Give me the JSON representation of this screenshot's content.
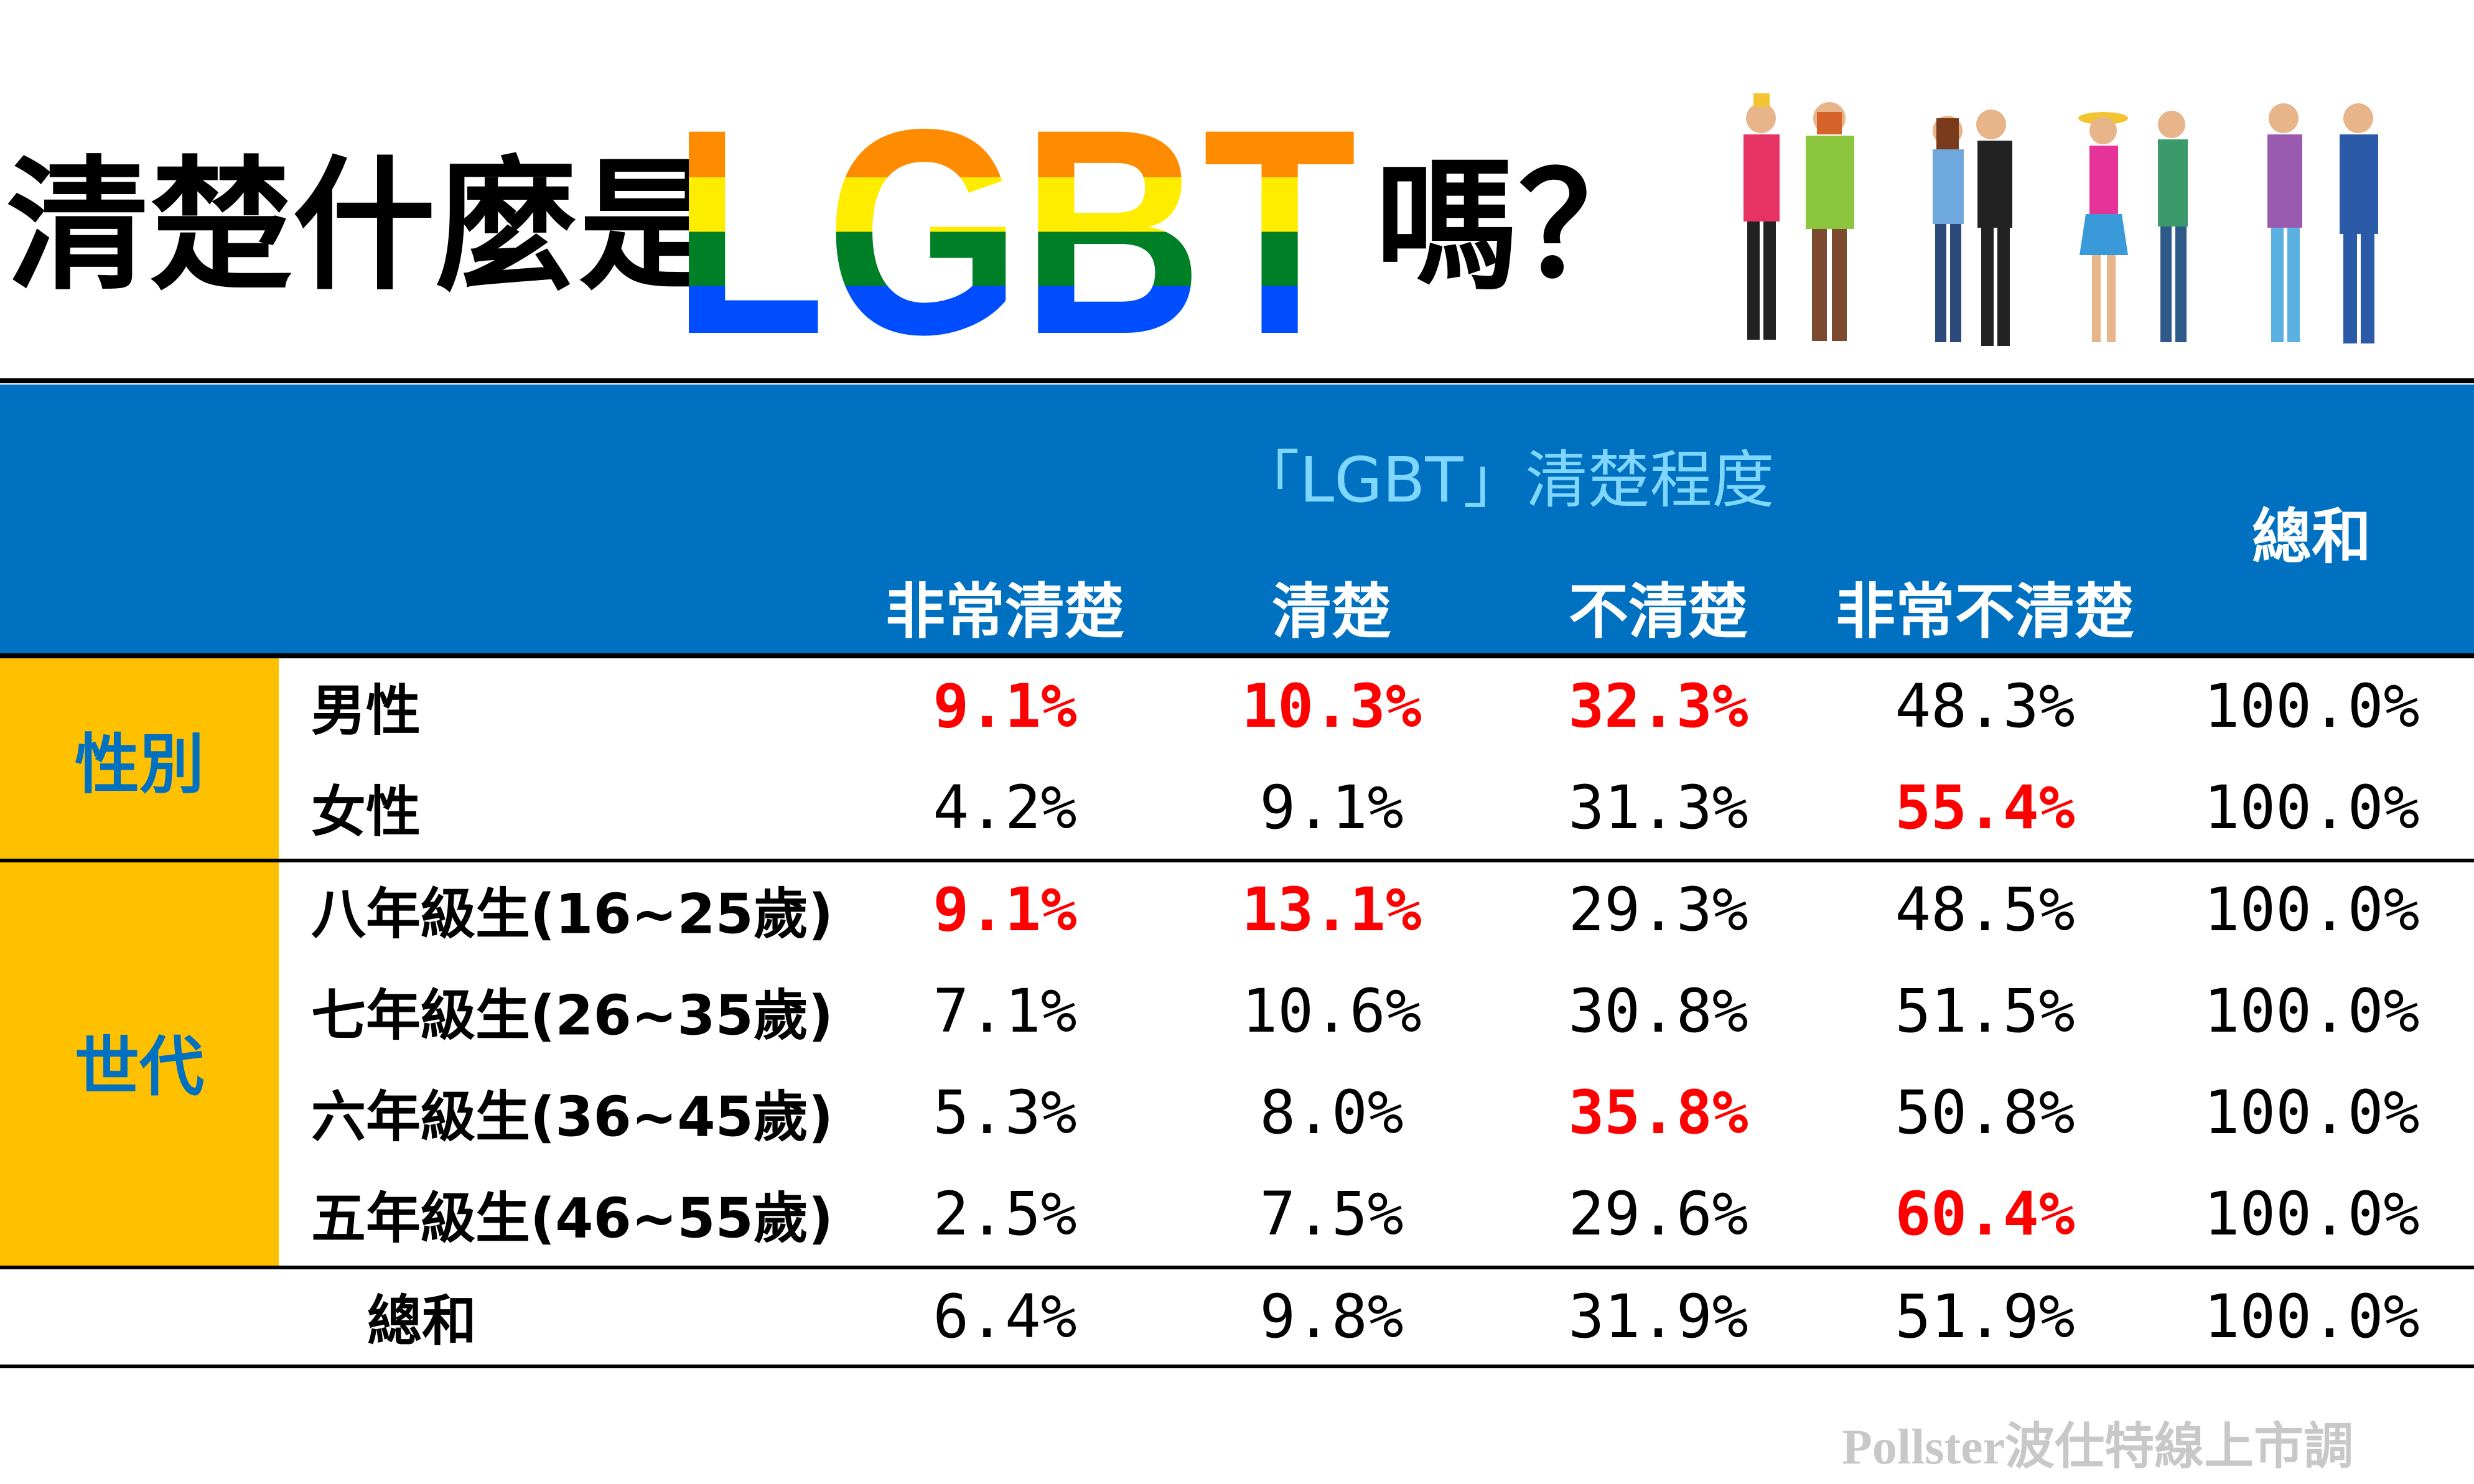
{
  "title": {
    "lead": "清楚什麼是",
    "logo_text": "LGBT",
    "trail": "嗎？"
  },
  "colors": {
    "header_bg": "#0070c0",
    "header_caption": "#7fd6ff",
    "group_bg": "#ffc000",
    "group_text": "#0070c0",
    "highlight": "#ff0000",
    "rainbow": [
      "#e40303",
      "#ff8c00",
      "#ffed00",
      "#008026",
      "#004dff",
      "#750787"
    ]
  },
  "icons": {
    "people": "people-group-illustration"
  },
  "table": {
    "header_caption": "「LGBT」清楚程度",
    "columns": [
      "非常清楚",
      "清楚",
      "不清楚",
      "非常不清楚"
    ],
    "total_col": "總和",
    "groups": [
      {
        "label": "性別",
        "rows": [
          {
            "label": "男性",
            "values": [
              "9.1%",
              "10.3%",
              "32.3%",
              "48.3%"
            ],
            "total": "100.0%",
            "highlight": [
              true,
              true,
              true,
              false
            ]
          },
          {
            "label": "女性",
            "values": [
              "4.2%",
              "9.1%",
              "31.3%",
              "55.4%"
            ],
            "total": "100.0%",
            "highlight": [
              false,
              false,
              false,
              true
            ]
          }
        ]
      },
      {
        "label": "世代",
        "rows": [
          {
            "label": "八年級生(16~25歲)",
            "values": [
              "9.1%",
              "13.1%",
              "29.3%",
              "48.5%"
            ],
            "total": "100.0%",
            "highlight": [
              true,
              true,
              false,
              false
            ]
          },
          {
            "label": "七年級生(26~35歲)",
            "values": [
              "7.1%",
              "10.6%",
              "30.8%",
              "51.5%"
            ],
            "total": "100.0%",
            "highlight": [
              false,
              false,
              false,
              false
            ]
          },
          {
            "label": "六年級生(36~45歲)",
            "values": [
              "5.3%",
              "8.0%",
              "35.8%",
              "50.8%"
            ],
            "total": "100.0%",
            "highlight": [
              false,
              false,
              true,
              false
            ]
          },
          {
            "label": "五年級生(46~55歲)",
            "values": [
              "2.5%",
              "7.5%",
              "29.6%",
              "60.4%"
            ],
            "total": "100.0%",
            "highlight": [
              false,
              false,
              false,
              true
            ]
          }
        ]
      }
    ],
    "total_row": {
      "label": "總和",
      "values": [
        "6.4%",
        "9.8%",
        "31.9%",
        "51.9%"
      ],
      "total": "100.0%"
    }
  },
  "chart_data": {
    "type": "table",
    "title": "清楚什麼是LGBT嗎？",
    "header": "「LGBT」清楚程度",
    "columns": [
      "非常清楚",
      "清楚",
      "不清楚",
      "非常不清楚",
      "總和"
    ],
    "rows": [
      {
        "group": "性別",
        "label": "男性",
        "values": [
          9.1,
          10.3,
          32.3,
          48.3,
          100.0
        ]
      },
      {
        "group": "性別",
        "label": "女性",
        "values": [
          4.2,
          9.1,
          31.3,
          55.4,
          100.0
        ]
      },
      {
        "group": "世代",
        "label": "八年級生(16~25歲)",
        "values": [
          9.1,
          13.1,
          29.3,
          48.5,
          100.0
        ]
      },
      {
        "group": "世代",
        "label": "七年級生(26~35歲)",
        "values": [
          7.1,
          10.6,
          30.8,
          51.5,
          100.0
        ]
      },
      {
        "group": "世代",
        "label": "六年級生(36~45歲)",
        "values": [
          5.3,
          8.0,
          35.8,
          50.8,
          100.0
        ]
      },
      {
        "group": "世代",
        "label": "五年級生(46~55歲)",
        "values": [
          2.5,
          7.5,
          29.6,
          60.4,
          100.0
        ]
      },
      {
        "group": "",
        "label": "總和",
        "values": [
          6.4,
          9.8,
          31.9,
          51.9,
          100.0
        ]
      }
    ],
    "unit": "%"
  },
  "watermark": "Pollster波仕特線上市調"
}
